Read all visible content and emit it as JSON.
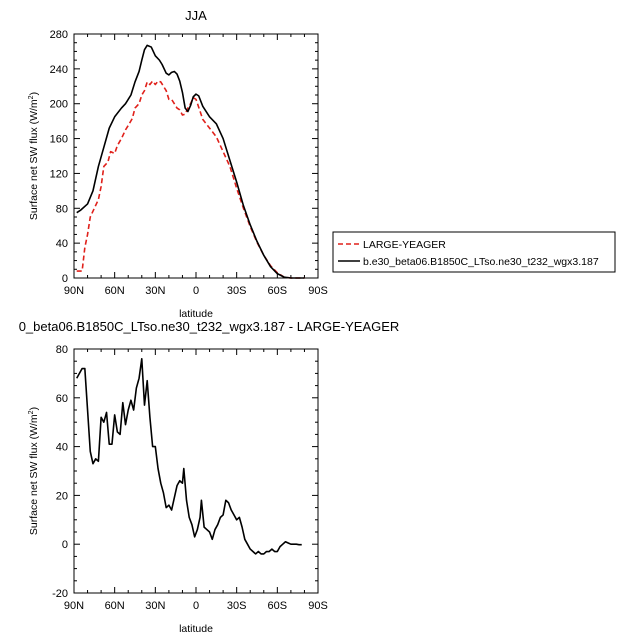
{
  "chart_data": [
    {
      "type": "line",
      "title": "JJA",
      "xlabel": "latitude",
      "ylabel": "Surface net SW flux (W/m",
      "ylabel_superscript": "2",
      "ylabel_close": ")",
      "xlim": [
        90,
        -90
      ],
      "ylim": [
        0,
        280
      ],
      "x_ticks": [
        90,
        60,
        30,
        0,
        -30,
        -60,
        -90
      ],
      "x_tick_labels": [
        "90N",
        "60N",
        "30N",
        "0",
        "30S",
        "60S",
        "90S"
      ],
      "y_ticks": [
        0,
        40,
        80,
        120,
        160,
        200,
        240,
        280
      ],
      "y_tick_labels": [
        "0",
        "40",
        "80",
        "120",
        "160",
        "200",
        "240",
        "280"
      ],
      "grid": false,
      "legend_position": "right",
      "series": [
        {
          "name": "LARGE-YEAGER",
          "color": "#e0201a",
          "dash": "dashed",
          "points": [
            [
              88,
              8
            ],
            [
              84,
              8
            ],
            [
              82,
              35
            ],
            [
              80,
              50
            ],
            [
              78,
              70
            ],
            [
              75,
              80
            ],
            [
              72,
              90
            ],
            [
              70,
              105
            ],
            [
              68,
              128
            ],
            [
              65,
              133
            ],
            [
              63,
              145
            ],
            [
              60,
              143
            ],
            [
              58,
              152
            ],
            [
              55,
              160
            ],
            [
              52,
              170
            ],
            [
              50,
              175
            ],
            [
              47,
              183
            ],
            [
              45,
              195
            ],
            [
              42,
              200
            ],
            [
              40,
              210
            ],
            [
              38,
              215
            ],
            [
              36,
              225
            ],
            [
              34,
              222
            ],
            [
              32,
              226
            ],
            [
              30,
              222
            ],
            [
              28,
              226
            ],
            [
              26,
              225
            ],
            [
              24,
              220
            ],
            [
              22,
              215
            ],
            [
              20,
              205
            ],
            [
              18,
              205
            ],
            [
              16,
              200
            ],
            [
              14,
              195
            ],
            [
              12,
              193
            ],
            [
              10,
              187
            ],
            [
              8,
              188
            ],
            [
              6,
              195
            ],
            [
              4,
              200
            ],
            [
              2,
              207
            ],
            [
              0,
              205
            ],
            [
              -2,
              196
            ],
            [
              -5,
              182
            ],
            [
              -10,
              172
            ],
            [
              -15,
              162
            ],
            [
              -20,
              145
            ],
            [
              -25,
              128
            ],
            [
              -30,
              103
            ],
            [
              -35,
              80
            ],
            [
              -40,
              59
            ],
            [
              -45,
              41
            ],
            [
              -50,
              26
            ],
            [
              -55,
              14
            ],
            [
              -60,
              6
            ],
            [
              -65,
              1
            ],
            [
              -70,
              0
            ],
            [
              -80,
              0
            ]
          ]
        },
        {
          "name": "b.e30_beta06.B1850C_LTso.ne30_t232_wgx3.187",
          "color": "#000000",
          "dash": "solid",
          "points": [
            [
              88,
              75
            ],
            [
              85,
              78
            ],
            [
              80,
              85
            ],
            [
              76,
              100
            ],
            [
              72,
              128
            ],
            [
              68,
              150
            ],
            [
              64,
              172
            ],
            [
              60,
              185
            ],
            [
              55,
              195
            ],
            [
              52,
              200
            ],
            [
              48,
              210
            ],
            [
              45,
              225
            ],
            [
              42,
              237
            ],
            [
              40,
              250
            ],
            [
              38,
              262
            ],
            [
              36,
              267
            ],
            [
              33,
              265
            ],
            [
              30,
              255
            ],
            [
              27,
              250
            ],
            [
              25,
              245
            ],
            [
              22,
              235
            ],
            [
              20,
              233
            ],
            [
              18,
              236
            ],
            [
              16,
              237
            ],
            [
              14,
              234
            ],
            [
              12,
              226
            ],
            [
              10,
              213
            ],
            [
              8,
              195
            ],
            [
              6,
              191
            ],
            [
              4,
              198
            ],
            [
              2,
              208
            ],
            [
              0,
              211
            ],
            [
              -2,
              209
            ],
            [
              -5,
              197
            ],
            [
              -10,
              185
            ],
            [
              -15,
              177
            ],
            [
              -20,
              160
            ],
            [
              -25,
              135
            ],
            [
              -30,
              110
            ],
            [
              -35,
              83
            ],
            [
              -40,
              61
            ],
            [
              -45,
              42
            ],
            [
              -50,
              26
            ],
            [
              -55,
              13
            ],
            [
              -60,
              5
            ],
            [
              -65,
              1
            ],
            [
              -70,
              0
            ],
            [
              -80,
              0
            ]
          ]
        }
      ]
    },
    {
      "type": "line",
      "title": "0_beta06.B1850C_LTso.ne30_t232_wgx3.187 - LARGE-YEAGER",
      "xlabel": "latitude",
      "ylabel": "Surface net SW flux (W/m",
      "ylabel_superscript": "2",
      "ylabel_close": ")",
      "xlim": [
        90,
        -90
      ],
      "ylim": [
        -20,
        80
      ],
      "x_ticks": [
        90,
        60,
        30,
        0,
        -30,
        -60,
        -90
      ],
      "x_tick_labels": [
        "90N",
        "60N",
        "30N",
        "0",
        "30S",
        "60S",
        "90S"
      ],
      "y_ticks": [
        -20,
        0,
        20,
        40,
        60,
        80
      ],
      "y_tick_labels": [
        "-20",
        "0",
        "20",
        "40",
        "60",
        "80"
      ],
      "grid": false,
      "series": [
        {
          "color": "#000000",
          "dash": "solid",
          "points": [
            [
              88,
              68
            ],
            [
              86,
              70
            ],
            [
              84,
              72
            ],
            [
              82,
              72
            ],
            [
              80,
              55
            ],
            [
              78,
              38
            ],
            [
              76,
              33
            ],
            [
              74,
              35
            ],
            [
              72,
              34
            ],
            [
              70,
              52
            ],
            [
              68,
              50
            ],
            [
              66,
              54
            ],
            [
              64,
              41
            ],
            [
              62,
              41
            ],
            [
              60,
              53
            ],
            [
              58,
              46
            ],
            [
              56,
              45
            ],
            [
              54,
              58
            ],
            [
              52,
              49
            ],
            [
              50,
              55
            ],
            [
              48,
              59
            ],
            [
              46,
              55
            ],
            [
              44,
              64
            ],
            [
              42,
              68
            ],
            [
              40,
              76
            ],
            [
              38,
              57
            ],
            [
              36,
              67
            ],
            [
              34,
              52
            ],
            [
              32,
              40
            ],
            [
              30,
              40
            ],
            [
              28,
              31
            ],
            [
              26,
              25
            ],
            [
              24,
              21
            ],
            [
              22,
              15
            ],
            [
              20,
              16
            ],
            [
              18,
              14
            ],
            [
              16,
              19
            ],
            [
              14,
              24
            ],
            [
              12,
              26
            ],
            [
              10,
              25
            ],
            [
              9,
              31
            ],
            [
              7,
              18
            ],
            [
              5,
              11
            ],
            [
              3,
              8
            ],
            [
              1,
              3
            ],
            [
              -1,
              6
            ],
            [
              -3,
              11
            ],
            [
              -4,
              18
            ],
            [
              -6,
              7
            ],
            [
              -8,
              6
            ],
            [
              -10,
              5
            ],
            [
              -12,
              2
            ],
            [
              -14,
              6
            ],
            [
              -16,
              8
            ],
            [
              -18,
              11
            ],
            [
              -20,
              12
            ],
            [
              -22,
              18
            ],
            [
              -24,
              17
            ],
            [
              -26,
              14
            ],
            [
              -28,
              12
            ],
            [
              -30,
              10
            ],
            [
              -32,
              11
            ],
            [
              -34,
              7
            ],
            [
              -36,
              2
            ],
            [
              -38,
              0
            ],
            [
              -40,
              -2
            ],
            [
              -42,
              -3
            ],
            [
              -44,
              -4
            ],
            [
              -46,
              -3
            ],
            [
              -48,
              -4
            ],
            [
              -50,
              -4
            ],
            [
              -52,
              -3
            ],
            [
              -54,
              -3
            ],
            [
              -56,
              -2
            ],
            [
              -58,
              -3
            ],
            [
              -60,
              -3
            ],
            [
              -62,
              -1
            ],
            [
              -64,
              0
            ],
            [
              -66,
              1
            ],
            [
              -68,
              0.5
            ],
            [
              -70,
              0
            ],
            [
              -72,
              0
            ],
            [
              -74,
              0
            ],
            [
              -76,
              -0.2
            ],
            [
              -78,
              -0.2
            ]
          ]
        }
      ]
    }
  ]
}
